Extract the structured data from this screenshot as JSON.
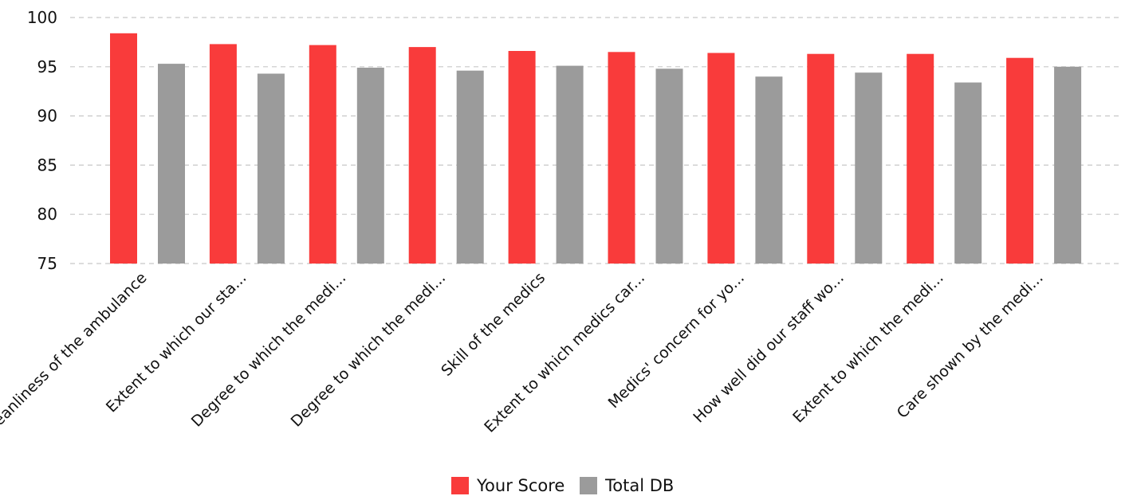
{
  "chart_data": {
    "type": "bar",
    "categories": [
      "Cleanliness of the ambulance",
      "Extent to which our sta...",
      "Degree to which the medi...",
      "Degree to which the medi...",
      "Skill of the medics",
      "Extent to which medics car...",
      "Medics' concern for yo...",
      "How well did our staff wo...",
      "Extent to which the medi...",
      "Care shown by the medi..."
    ],
    "series": [
      {
        "name": "Your Score",
        "color": "#f93b3b",
        "values": [
          98.4,
          97.3,
          97.2,
          97.0,
          96.6,
          96.5,
          96.4,
          96.3,
          96.3,
          95.9
        ]
      },
      {
        "name": "Total DB",
        "color": "#9b9b9b",
        "values": [
          95.3,
          94.3,
          94.9,
          94.6,
          95.1,
          94.8,
          94.0,
          94.4,
          93.4,
          95.0
        ]
      }
    ],
    "yticks": [
      75,
      80,
      85,
      90,
      95,
      100
    ],
    "ylim": [
      75,
      100
    ],
    "grid": true,
    "legend": "bottom-center",
    "title": "",
    "xlabel": "",
    "ylabel": ""
  }
}
